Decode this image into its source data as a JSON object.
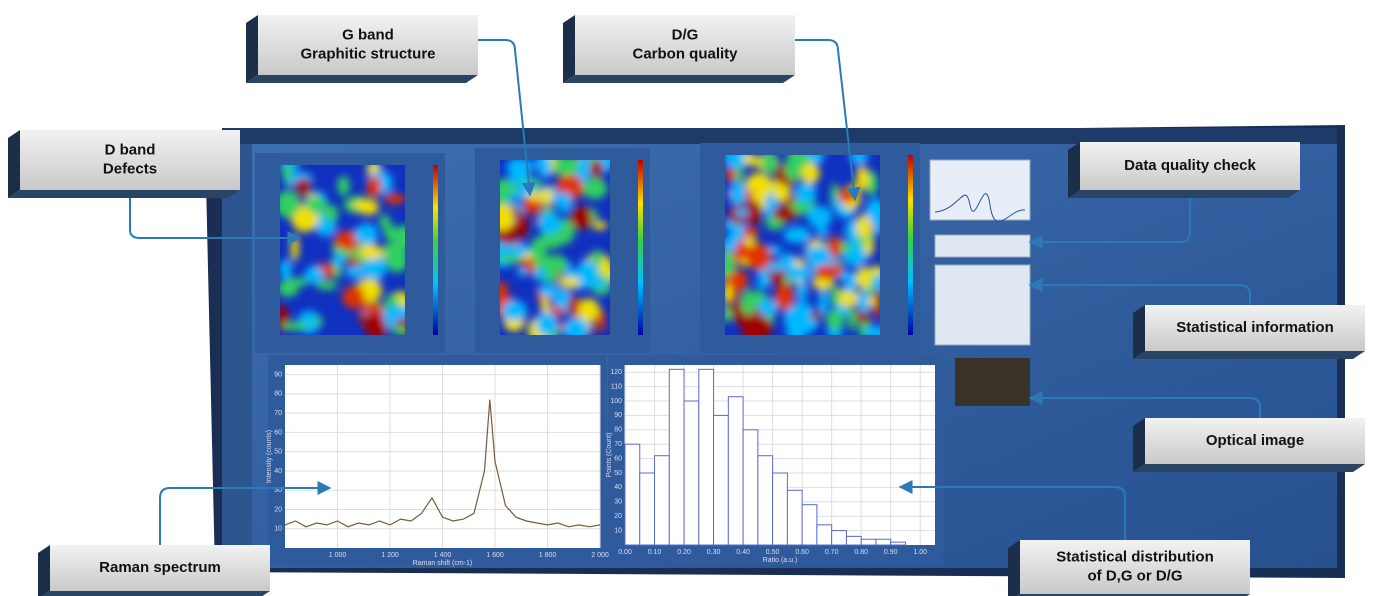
{
  "callouts": [
    {
      "lines": [
        "G band",
        "Graphitic structure"
      ]
    },
    {
      "lines": [
        "D/G",
        "Carbon quality"
      ]
    },
    {
      "lines": [
        "D band",
        "Defects"
      ]
    },
    {
      "lines": [
        "Data quality check"
      ]
    },
    {
      "lines": [
        "Statistical information"
      ]
    },
    {
      "lines": [
        "Optical image"
      ]
    },
    {
      "lines": [
        "Raman spectrum"
      ]
    },
    {
      "lines": [
        "Statistical distribution",
        "of D,G or D/G"
      ]
    }
  ],
  "spectrum": {
    "xlabel": "Raman shift (cm-1)",
    "ylabel": "Intensity (counts)",
    "xlim": [
      800,
      2000
    ],
    "ylim": [
      0,
      95
    ],
    "xticks": [
      {
        "value": 1000,
        "label": "1 000"
      },
      {
        "value": 1200,
        "label": "1 200"
      },
      {
        "value": 1400,
        "label": "1 400"
      },
      {
        "value": 1600,
        "label": "1 600"
      },
      {
        "value": 1800,
        "label": "1 800"
      },
      {
        "value": 2000,
        "label": "2 000"
      }
    ],
    "yticks": [
      10,
      20,
      30,
      40,
      50,
      60,
      70,
      80,
      90
    ],
    "x": [
      800,
      840,
      880,
      920,
      960,
      1000,
      1040,
      1080,
      1120,
      1160,
      1200,
      1240,
      1280,
      1320,
      1360,
      1400,
      1440,
      1480,
      1520,
      1560,
      1580,
      1600,
      1640,
      1680,
      1720,
      1760,
      1800,
      1840,
      1880,
      1920,
      1960,
      2000
    ],
    "values": [
      12,
      14,
      11,
      13,
      12,
      14,
      11,
      13,
      12,
      14,
      12,
      15,
      14,
      18,
      26,
      16,
      14,
      15,
      18,
      40,
      77,
      45,
      22,
      16,
      14,
      13,
      12,
      13,
      11,
      12,
      11,
      12
    ]
  },
  "histogram": {
    "xlabel": "Ratio (a.u.)",
    "ylabel": "Points (Count)",
    "xlim": [
      0,
      1.05
    ],
    "ylim": [
      0,
      125
    ],
    "xticks": [
      {
        "value": 0,
        "label": "0.00"
      },
      {
        "value": 0.1,
        "label": "0.10"
      },
      {
        "value": 0.2,
        "label": "0.20"
      },
      {
        "value": 0.3,
        "label": "0.30"
      },
      {
        "value": 0.4,
        "label": "0.40"
      },
      {
        "value": 0.5,
        "label": "0.50"
      },
      {
        "value": 0.6,
        "label": "0.60"
      },
      {
        "value": 0.7,
        "label": "0.70"
      },
      {
        "value": 0.8,
        "label": "0.80"
      },
      {
        "value": 0.9,
        "label": "0.90"
      },
      {
        "value": 1,
        "label": "1.00"
      }
    ],
    "yticks": [
      10,
      20,
      30,
      40,
      50,
      60,
      70,
      80,
      90,
      100,
      110,
      120
    ],
    "bins": [
      0,
      0.05,
      0.1,
      0.15,
      0.2,
      0.25,
      0.3,
      0.35,
      0.4,
      0.45,
      0.5,
      0.55,
      0.6,
      0.65,
      0.7,
      0.75,
      0.8,
      0.85,
      0.9,
      0.95
    ],
    "counts": [
      70,
      50,
      62,
      122,
      100,
      122,
      90,
      103,
      80,
      62,
      50,
      38,
      28,
      14,
      10,
      6,
      4,
      4,
      2
    ]
  }
}
